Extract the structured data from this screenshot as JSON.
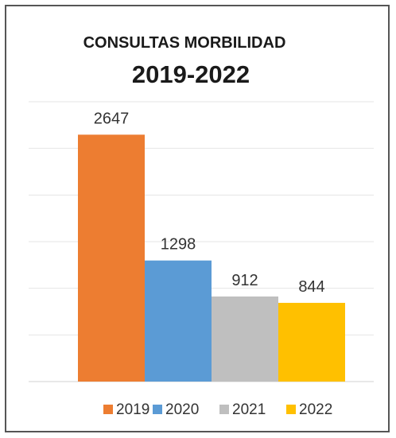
{
  "chart_data": {
    "type": "bar",
    "title": "CONSULTAS MORBILIDAD",
    "subtitle": "2019-2022",
    "categories": [
      "2019",
      "2020",
      "2021",
      "2022"
    ],
    "values": [
      2647,
      1298,
      912,
      844
    ],
    "colors": [
      "#ED7D31",
      "#5B9BD5",
      "#BFBFBF",
      "#FFC000"
    ],
    "legend_position": "bottom",
    "grid": true,
    "ylim": [
      0,
      3000
    ],
    "xlabel": "",
    "ylabel": ""
  }
}
